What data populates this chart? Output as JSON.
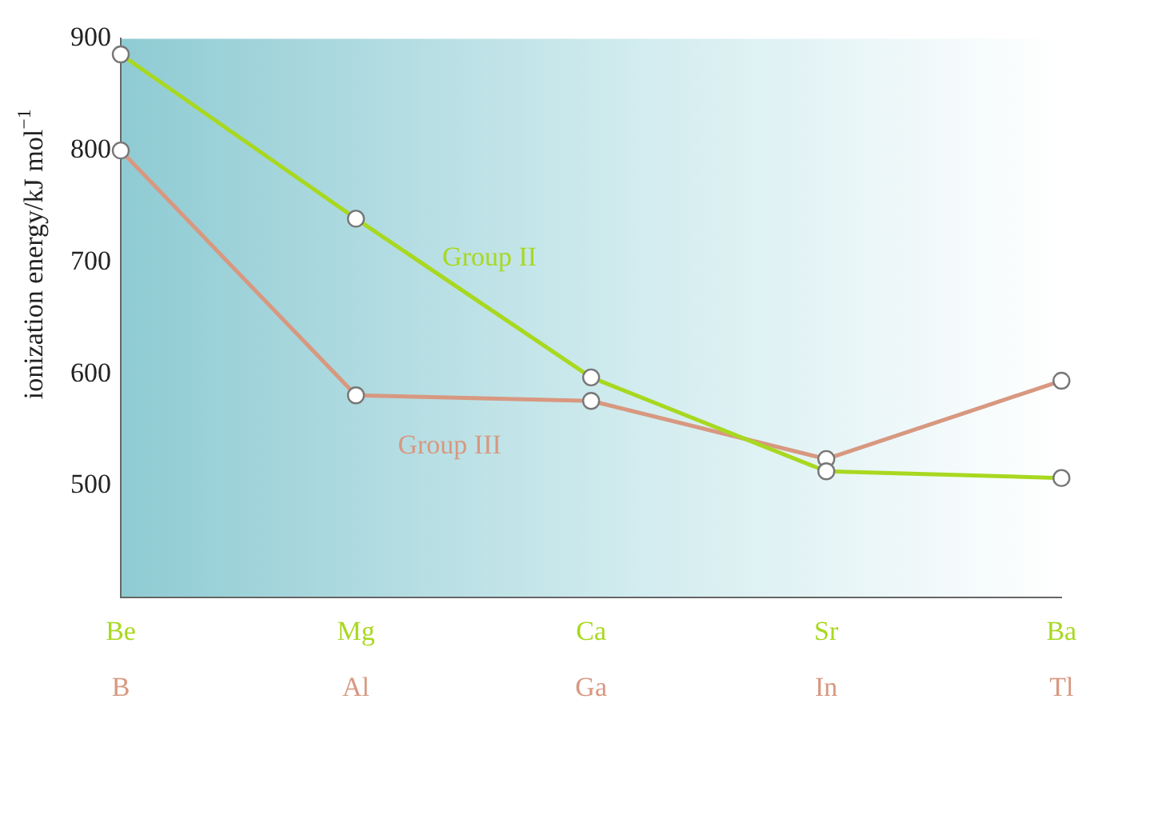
{
  "chart_data": {
    "type": "line",
    "ylabel": "ionization energy/kJ mol$^{−1}$",
    "categories": [
      "Be\nB",
      "Mg\nAl",
      "Ca\nGa",
      "Sr\nIn",
      "Ba\nTl"
    ],
    "series": [
      {
        "name": "Group II",
        "color": "#a8d820",
        "values": [
          886,
          739,
          597,
          513,
          507
        ]
      },
      {
        "name": "Group III",
        "color": "#d89880",
        "values": [
          800,
          581,
          576,
          524,
          594
        ]
      }
    ],
    "ylim": [
      400,
      900
    ],
    "yticks": [
      500,
      600,
      700,
      800,
      900
    ],
    "marker": "circle",
    "grid": false,
    "legend": false
  }
}
